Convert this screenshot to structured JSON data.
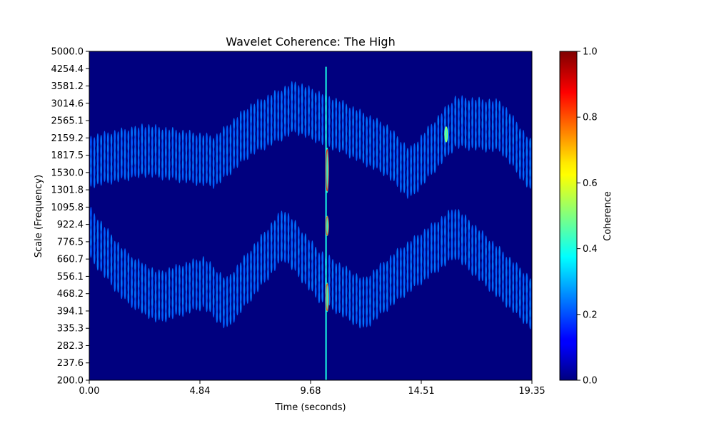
{
  "chart_data": {
    "type": "heatmap",
    "title": "Wavelet Coherence: The High",
    "xlabel": "Time (seconds)",
    "ylabel": "Scale (Frequency)",
    "xlim": [
      0,
      19.35
    ],
    "ylim": [
      200.0,
      5000.0
    ],
    "y_scale": "log",
    "x_ticks": [
      "0.00",
      "4.84",
      "9.68",
      "14.51",
      "19.35"
    ],
    "y_ticks": [
      "200.0",
      "237.6",
      "282.3",
      "335.3",
      "394.1",
      "468.2",
      "556.1",
      "660.7",
      "776.5",
      "922.4",
      "1095.8",
      "1301.8",
      "1530.0",
      "1817.5",
      "2159.2",
      "2565.1",
      "3014.6",
      "3581.2",
      "4254.4",
      "5000.0"
    ],
    "colorbar": {
      "label": "Coherence",
      "range": [
        0.0,
        1.0
      ],
      "ticks": [
        "0.0",
        "0.2",
        "0.4",
        "0.6",
        "0.8",
        "1.0"
      ],
      "colormap": "jet"
    },
    "background_value": 0.02,
    "bands": [
      {
        "name": "upper",
        "t": [
          0,
          2.5,
          5.5,
          7,
          9,
          11,
          13,
          14,
          16,
          18,
          19.35
        ],
        "scale_center": [
          1700,
          1900,
          1700,
          2300,
          2900,
          2400,
          1900,
          1500,
          2500,
          2400,
          1600
        ],
        "half_width_rows": 2,
        "value": 0.22
      },
      {
        "name": "lower",
        "t": [
          0,
          1.5,
          3,
          5,
          6,
          8.5,
          10,
          12,
          13.5,
          16,
          18,
          19.35
        ],
        "scale_center": [
          850,
          560,
          450,
          520,
          420,
          840,
          560,
          420,
          560,
          850,
          560,
          420
        ],
        "half_width_rows": 2,
        "value": 0.22
      }
    ],
    "vertical_ridge": {
      "t": 10.35,
      "scale_range": [
        200,
        4300
      ],
      "value": 0.4
    },
    "hot_spots": [
      {
        "t": 10.4,
        "scale_range": [
          1250,
          1950
        ],
        "value": 0.85
      },
      {
        "t": 10.4,
        "scale_range": [
          820,
          1000
        ],
        "value": 0.8
      },
      {
        "t": 10.4,
        "scale_range": [
          390,
          520
        ],
        "value": 0.8
      },
      {
        "t": 15.6,
        "scale_range": [
          2050,
          2400
        ],
        "value": 0.55
      }
    ]
  }
}
